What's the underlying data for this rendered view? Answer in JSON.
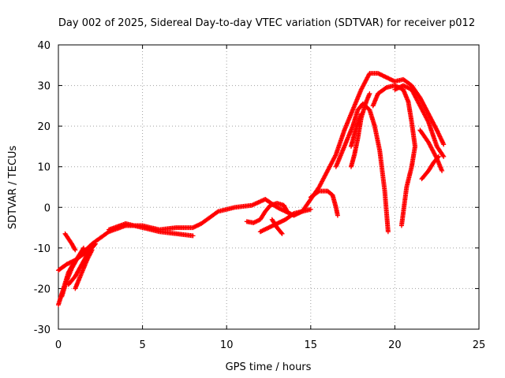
{
  "chart_data": {
    "type": "scatter",
    "title": "Day 002 of 2025, Sidereal Day-to-day VTEC variation (SDTVAR) for receiver p012",
    "xlabel": "GPS time / hours",
    "ylabel": "SDTVAR / TECUs",
    "xlim": [
      0,
      25
    ],
    "ylim": [
      -30,
      40
    ],
    "xticks": [
      0,
      5,
      10,
      15,
      20,
      25
    ],
    "yticks": [
      -30,
      -20,
      -10,
      0,
      10,
      20,
      30,
      40
    ],
    "grid": true,
    "marker": "+",
    "color": "#ff0000",
    "series": [
      {
        "name": "track-1",
        "points": [
          [
            0,
            -24
          ],
          [
            0.3,
            -20
          ],
          [
            0.6,
            -16
          ],
          [
            1,
            -13
          ],
          [
            1.5,
            -11
          ],
          [
            2,
            -9
          ],
          [
            3,
            -6
          ],
          [
            4,
            -4.5
          ],
          [
            5,
            -4.5
          ],
          [
            6,
            -5.5
          ],
          [
            7,
            -5
          ],
          [
            8,
            -5
          ],
          [
            8.5,
            -4
          ],
          [
            9.5,
            -1
          ],
          [
            10.5,
            0
          ],
          [
            11.5,
            0.5
          ],
          [
            12.3,
            2
          ],
          [
            13,
            0
          ],
          [
            13.5,
            -1
          ],
          [
            14,
            -2
          ],
          [
            14.5,
            -1
          ],
          [
            15,
            2
          ],
          [
            15.5,
            5
          ],
          [
            16,
            9
          ],
          [
            16.5,
            13
          ],
          [
            17,
            19
          ],
          [
            17.5,
            24
          ],
          [
            18,
            29
          ],
          [
            18.5,
            33
          ],
          [
            19,
            33
          ],
          [
            19.5,
            32
          ],
          [
            20,
            31
          ],
          [
            20.5,
            31.5
          ],
          [
            21,
            30
          ],
          [
            21.5,
            27
          ],
          [
            22,
            23
          ],
          [
            22.5,
            19
          ],
          [
            22.9,
            15.5
          ]
        ]
      },
      {
        "name": "track-2",
        "points": [
          [
            0.4,
            -6.5
          ],
          [
            0.8,
            -9
          ],
          [
            1,
            -10.5
          ]
        ]
      },
      {
        "name": "track-3",
        "points": [
          [
            0,
            -15.5
          ],
          [
            0.5,
            -14
          ],
          [
            1,
            -13
          ],
          [
            1.5,
            -11.5
          ],
          [
            2,
            -9.5
          ]
        ]
      },
      {
        "name": "track-4",
        "points": [
          [
            0.2,
            -22
          ],
          [
            0.5,
            -18
          ],
          [
            0.8,
            -15
          ],
          [
            1.2,
            -12
          ],
          [
            1.5,
            -10
          ]
        ]
      },
      {
        "name": "track-5",
        "points": [
          [
            0.6,
            -19
          ],
          [
            1,
            -17
          ],
          [
            1.4,
            -14
          ],
          [
            1.8,
            -11
          ],
          [
            2.2,
            -9
          ]
        ]
      },
      {
        "name": "track-6",
        "points": [
          [
            1,
            -20
          ],
          [
            1.3,
            -17
          ],
          [
            1.7,
            -13
          ],
          [
            2,
            -10.5
          ]
        ]
      },
      {
        "name": "track-7",
        "points": [
          [
            3,
            -5.5
          ],
          [
            4,
            -4
          ],
          [
            5,
            -5
          ],
          [
            6,
            -6
          ],
          [
            7,
            -6.5
          ],
          [
            8,
            -7
          ]
        ]
      },
      {
        "name": "track-8",
        "points": [
          [
            11.2,
            -3.5
          ],
          [
            11.6,
            -3.8
          ],
          [
            12,
            -3
          ],
          [
            12.3,
            -1
          ],
          [
            12.6,
            0.5
          ],
          [
            13,
            1
          ],
          [
            13.4,
            0.5
          ],
          [
            13.6,
            -1
          ]
        ]
      },
      {
        "name": "track-9",
        "points": [
          [
            12,
            -6
          ],
          [
            12.5,
            -5
          ],
          [
            13,
            -4
          ],
          [
            13.5,
            -3
          ],
          [
            14,
            -1.5
          ],
          [
            14.5,
            -1
          ],
          [
            15,
            -0.5
          ]
        ]
      },
      {
        "name": "track-10",
        "points": [
          [
            12.7,
            -3
          ],
          [
            13,
            -5
          ],
          [
            13.3,
            -6.5
          ]
        ]
      },
      {
        "name": "track-11",
        "points": [
          [
            15,
            2.5
          ],
          [
            15.5,
            4
          ],
          [
            16,
            4
          ],
          [
            16.3,
            3
          ],
          [
            16.5,
            0
          ],
          [
            16.6,
            -2
          ]
        ]
      },
      {
        "name": "track-12",
        "points": [
          [
            16.5,
            10
          ],
          [
            17,
            15
          ],
          [
            17.5,
            20
          ],
          [
            17.8,
            24
          ],
          [
            18.1,
            25.5
          ],
          [
            18.5,
            24
          ],
          [
            18.8,
            20
          ],
          [
            19.1,
            14
          ],
          [
            19.4,
            4
          ],
          [
            19.6,
            -6
          ]
        ]
      },
      {
        "name": "track-13",
        "points": [
          [
            17.4,
            15
          ],
          [
            17.6,
            18
          ],
          [
            17.8,
            21
          ],
          [
            18,
            23
          ]
        ]
      },
      {
        "name": "track-14",
        "points": [
          [
            17.4,
            10
          ],
          [
            17.6,
            13
          ],
          [
            17.8,
            17
          ],
          [
            18,
            22
          ],
          [
            18.3,
            26
          ],
          [
            18.5,
            28
          ]
        ]
      },
      {
        "name": "track-15",
        "points": [
          [
            18.7,
            25
          ],
          [
            19,
            28
          ],
          [
            19.5,
            29.5
          ],
          [
            20,
            30
          ],
          [
            20.5,
            29
          ],
          [
            20.8,
            26
          ],
          [
            21,
            21
          ],
          [
            21.2,
            15
          ],
          [
            21,
            10
          ],
          [
            20.7,
            5
          ],
          [
            20.4,
            -4.5
          ]
        ]
      },
      {
        "name": "track-16",
        "points": [
          [
            20,
            29
          ],
          [
            20.5,
            30
          ],
          [
            21,
            29
          ],
          [
            21.5,
            25
          ],
          [
            22,
            21
          ],
          [
            22.5,
            15
          ],
          [
            22.9,
            12.5
          ]
        ]
      },
      {
        "name": "track-17",
        "points": [
          [
            21.5,
            19
          ],
          [
            22,
            16
          ],
          [
            22.5,
            12
          ],
          [
            22.8,
            9
          ]
        ]
      },
      {
        "name": "track-18",
        "points": [
          [
            21.6,
            7
          ],
          [
            22,
            9
          ],
          [
            22.3,
            11
          ],
          [
            22.6,
            12.5
          ]
        ]
      }
    ]
  }
}
